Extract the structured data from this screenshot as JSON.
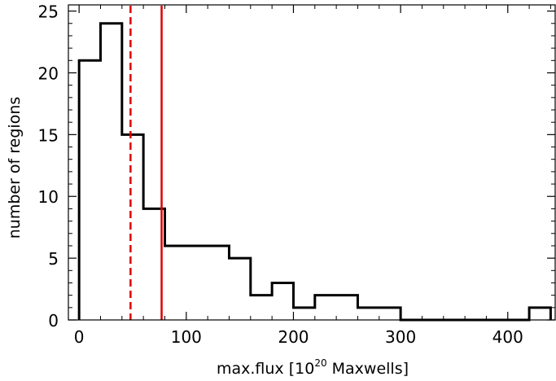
{
  "chart_data": {
    "type": "histogram",
    "xlabel": "max.flux",
    "xlabel_unit_open": "[10",
    "xlabel_unit_exp": "20",
    "xlabel_unit_close": " Maxwells]",
    "ylabel": "number of regions",
    "xlim": [
      -10,
      445
    ],
    "ylim": [
      0,
      25.5
    ],
    "x_ticks": [
      0,
      100,
      200,
      300,
      400
    ],
    "x_tick_labels": [
      "0",
      "100",
      "200",
      "300",
      "400"
    ],
    "x_minor_step": 20,
    "y_ticks": [
      0,
      5,
      10,
      15,
      20,
      25
    ],
    "y_tick_labels": [
      "0",
      "5",
      "10",
      "15",
      "20",
      "25"
    ],
    "y_minor_step": 1,
    "bin_width": 20,
    "bin_starts": [
      0,
      20,
      40,
      60,
      80,
      100,
      120,
      140,
      160,
      180,
      200,
      220,
      240,
      260,
      280,
      300,
      320,
      340,
      360,
      380,
      400,
      420
    ],
    "counts": [
      21,
      24,
      15,
      9,
      6,
      6,
      6,
      5,
      2,
      3,
      1,
      2,
      2,
      1,
      1,
      0,
      0,
      0,
      0,
      0,
      0,
      1
    ],
    "vlines": [
      {
        "x": 48,
        "style": "dashed",
        "color": "#e00000"
      },
      {
        "x": 77,
        "style": "solid",
        "color": "#e00000"
      }
    ],
    "histogram_color": "#000000",
    "grid": false
  }
}
